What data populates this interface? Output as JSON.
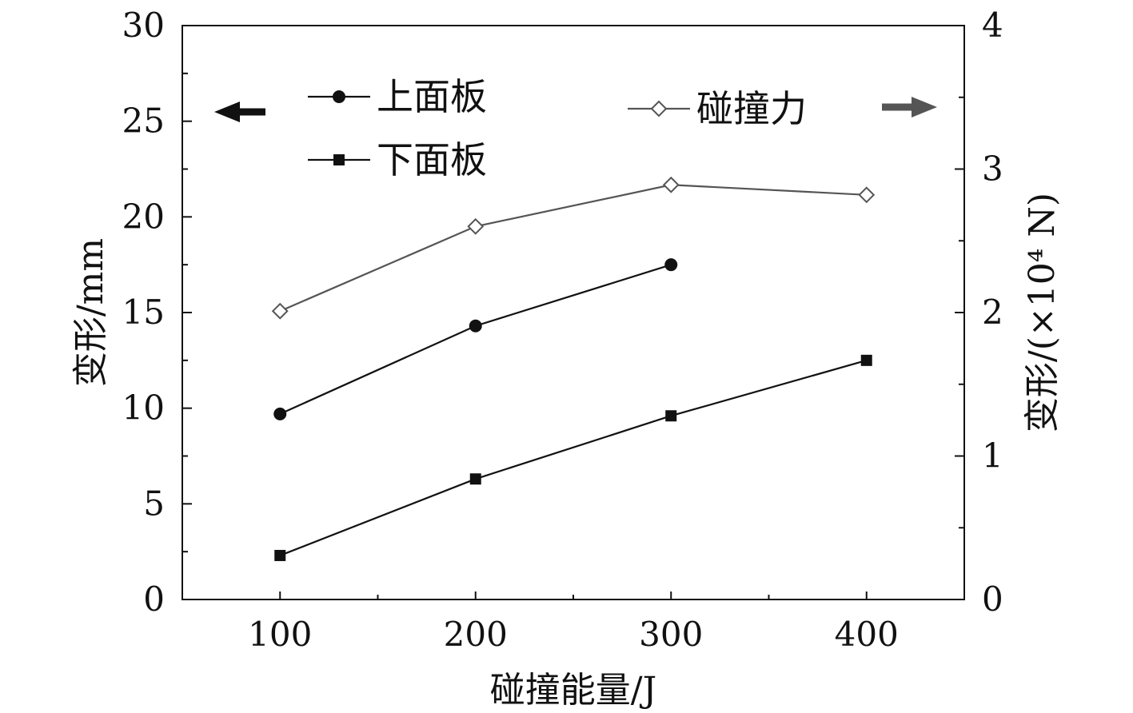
{
  "chart_data": {
    "type": "line",
    "x": [
      100,
      200,
      300,
      400
    ],
    "x_ticks": [
      "100",
      "200",
      "300",
      "400"
    ],
    "xlabel": "碰撞能量/J",
    "xlim": [
      50,
      450
    ],
    "ylabel_left": "变形/mm",
    "ylim_left": [
      0,
      30
    ],
    "yticks_left": [
      "0",
      "5",
      "10",
      "15",
      "20",
      "25",
      "30"
    ],
    "ylabel_right": "变形/(×10⁴ N)",
    "ylim_right": [
      0,
      4
    ],
    "yticks_right": [
      "0",
      "1",
      "2",
      "3",
      "4"
    ],
    "series": [
      {
        "name": "上面板",
        "axis": "left",
        "marker": "circle",
        "color": "#111111",
        "x": [
          100,
          200,
          300
        ],
        "values": [
          9.7,
          14.3,
          17.5
        ]
      },
      {
        "name": "下面板",
        "axis": "left",
        "marker": "square",
        "color": "#111111",
        "x": [
          100,
          200,
          300,
          400
        ],
        "values": [
          2.3,
          6.3,
          9.6,
          12.5
        ]
      },
      {
        "name": "碰撞力",
        "axis": "right",
        "marker": "diamond-open",
        "color": "#555555",
        "x": [
          100,
          200,
          300,
          400
        ],
        "values": [
          2.01,
          2.6,
          2.89,
          2.82
        ]
      }
    ],
    "legend": "top",
    "grid": false,
    "annotations": [
      {
        "type": "arrow",
        "direction": "left",
        "meaning": "left-axis",
        "color": "#111111"
      },
      {
        "type": "arrow",
        "direction": "right",
        "meaning": "right-axis",
        "color": "#555555"
      }
    ]
  }
}
